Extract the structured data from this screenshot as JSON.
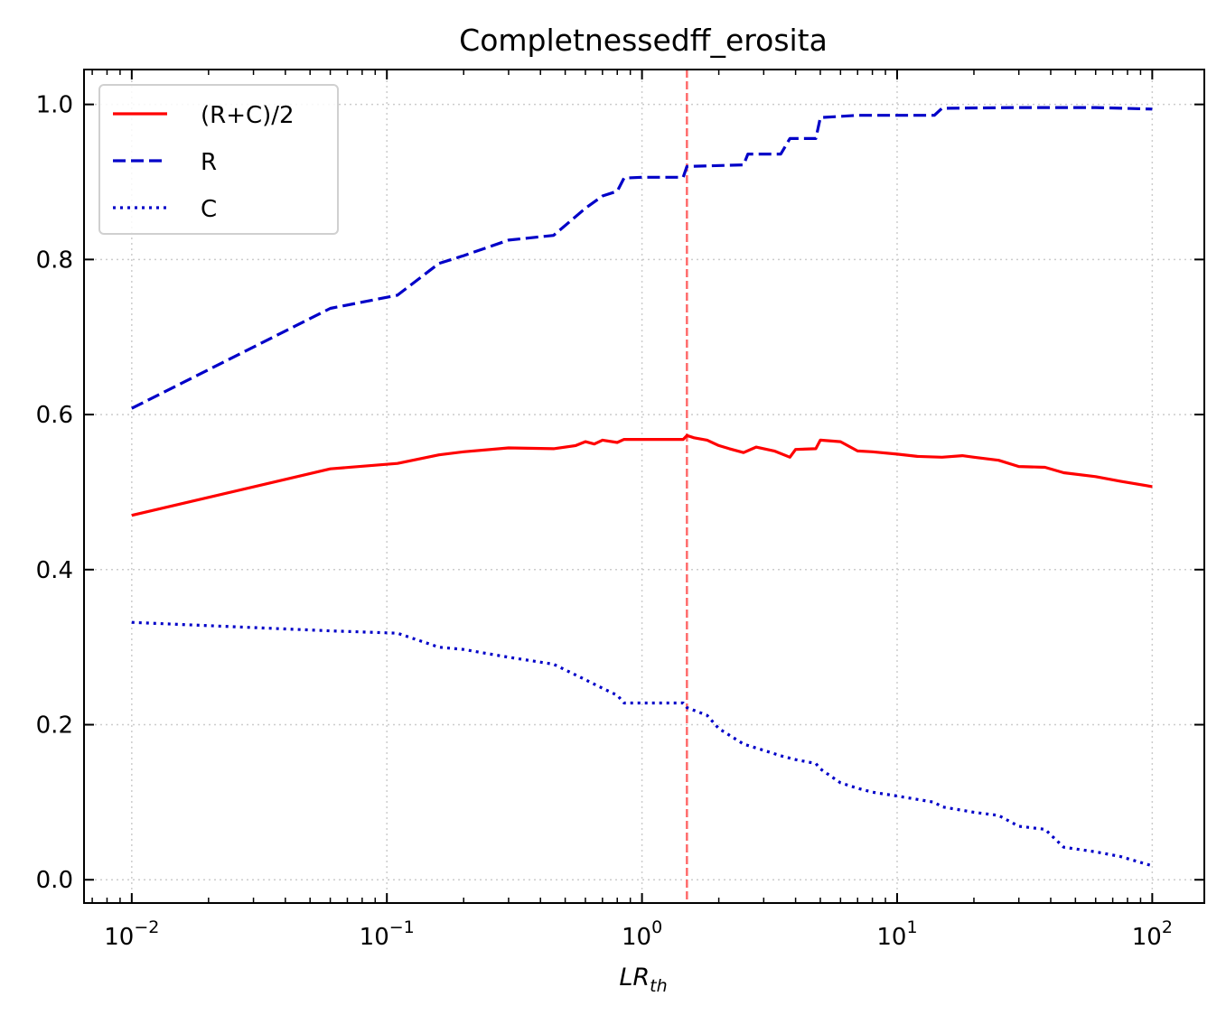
{
  "chart_data": {
    "type": "line",
    "title": "Completnessedff_erosita",
    "xlabel": "LR",
    "xlabel_sub": "th",
    "ylabel": "",
    "xscale": "log",
    "xlim": [
      0.0065,
      160
    ],
    "ylim": [
      -0.03,
      1.045
    ],
    "grid": true,
    "legend_position": "top-left",
    "x_ticks": [
      {
        "value": 0.01,
        "base": "10",
        "exp": "−2"
      },
      {
        "value": 0.1,
        "base": "10",
        "exp": "−1"
      },
      {
        "value": 1,
        "base": "10",
        "exp": "0"
      },
      {
        "value": 10,
        "base": "10",
        "exp": "1"
      },
      {
        "value": 100,
        "base": "10",
        "exp": "2"
      }
    ],
    "y_ticks": [
      {
        "value": 0.0,
        "label": "0.0"
      },
      {
        "value": 0.2,
        "label": "0.2"
      },
      {
        "value": 0.4,
        "label": "0.4"
      },
      {
        "value": 0.6,
        "label": "0.6"
      },
      {
        "value": 0.8,
        "label": "0.8"
      },
      {
        "value": 1.0,
        "label": "1.0"
      }
    ],
    "threshold_line": {
      "x": 1.5,
      "color": "#ff6b6b"
    },
    "series": [
      {
        "name": "(R+C)/2",
        "color": "#ff0000",
        "style": "solid",
        "x": [
          0.01,
          0.06,
          0.11,
          0.16,
          0.2,
          0.3,
          0.45,
          0.55,
          0.6,
          0.65,
          0.7,
          0.8,
          0.85,
          1.0,
          1.2,
          1.45,
          1.5,
          1.6,
          1.8,
          2.0,
          2.2,
          2.5,
          2.8,
          3.3,
          3.8,
          4.0,
          4.8,
          5.0,
          6.0,
          7.0,
          8.0,
          10.0,
          12.0,
          15.0,
          18.0,
          20.0,
          25.0,
          30.0,
          38.0,
          45.0,
          60.0,
          75.0,
          100.0
        ],
        "values": [
          0.47,
          0.53,
          0.537,
          0.548,
          0.552,
          0.557,
          0.556,
          0.56,
          0.565,
          0.562,
          0.567,
          0.564,
          0.568,
          0.568,
          0.568,
          0.568,
          0.573,
          0.57,
          0.567,
          0.56,
          0.556,
          0.551,
          0.558,
          0.553,
          0.545,
          0.555,
          0.556,
          0.567,
          0.565,
          0.553,
          0.552,
          0.549,
          0.546,
          0.545,
          0.547,
          0.545,
          0.541,
          0.533,
          0.532,
          0.525,
          0.52,
          0.514,
          0.507
        ]
      },
      {
        "name": "R",
        "color": "#0000c8",
        "style": "dashed",
        "x": [
          0.01,
          0.06,
          0.11,
          0.16,
          0.2,
          0.3,
          0.45,
          0.6,
          0.7,
          0.8,
          0.85,
          1.0,
          1.45,
          1.5,
          2.5,
          2.6,
          3.5,
          3.8,
          4.8,
          5.0,
          7.0,
          14.0,
          15.0,
          30.0,
          60.0,
          100.0
        ],
        "values": [
          0.608,
          0.737,
          0.754,
          0.795,
          0.805,
          0.825,
          0.831,
          0.866,
          0.882,
          0.888,
          0.905,
          0.906,
          0.906,
          0.92,
          0.922,
          0.936,
          0.936,
          0.956,
          0.956,
          0.983,
          0.986,
          0.986,
          0.995,
          0.996,
          0.996,
          0.994
        ]
      },
      {
        "name": "C",
        "color": "#0000c8",
        "style": "dotted",
        "x": [
          0.01,
          0.06,
          0.11,
          0.16,
          0.2,
          0.3,
          0.45,
          0.6,
          0.7,
          0.8,
          0.85,
          1.0,
          1.45,
          1.5,
          1.8,
          2.0,
          2.5,
          3.0,
          3.5,
          4.0,
          4.8,
          5.0,
          6.0,
          7.0,
          8.0,
          10.0,
          14.0,
          15.0,
          20.0,
          25.0,
          30.0,
          38.0,
          45.0,
          60.0,
          75.0,
          100.0
        ],
        "values": [
          0.332,
          0.321,
          0.318,
          0.3,
          0.297,
          0.287,
          0.278,
          0.258,
          0.247,
          0.238,
          0.228,
          0.228,
          0.228,
          0.222,
          0.212,
          0.195,
          0.175,
          0.167,
          0.16,
          0.155,
          0.15,
          0.143,
          0.125,
          0.118,
          0.113,
          0.108,
          0.1,
          0.094,
          0.087,
          0.083,
          0.069,
          0.065,
          0.042,
          0.036,
          0.03,
          0.018
        ]
      }
    ]
  }
}
